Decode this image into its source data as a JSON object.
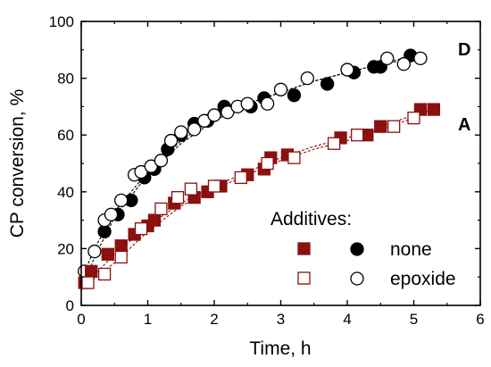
{
  "chart_data": {
    "type": "scatter",
    "xlabel": "Time, h",
    "ylabel": "CP conversion, %",
    "xlim": [
      0,
      6
    ],
    "ylim": [
      0,
      100
    ],
    "xticks": [
      0,
      1,
      2,
      3,
      4,
      5,
      6
    ],
    "yticks": [
      0,
      20,
      40,
      60,
      80,
      100
    ],
    "grid": false,
    "legend": {
      "title": "Additives:",
      "entries": [
        {
          "label": "none",
          "markers": [
            "filled-square",
            "filled-circle"
          ]
        },
        {
          "label": "epoxide",
          "markers": [
            "open-square",
            "open-circle"
          ]
        }
      ],
      "placement": "bottom-right"
    },
    "curve_labels": [
      "D",
      "A"
    ],
    "colors": {
      "A": "#8b1010",
      "D": "#000000"
    },
    "series": [
      {
        "curve": "D",
        "additive": "none",
        "marker": "filled-circle",
        "x": [
          0.1,
          0.35,
          0.55,
          0.75,
          0.95,
          1.1,
          1.3,
          1.5,
          1.7,
          1.9,
          2.15,
          2.55,
          2.75,
          3.2,
          3.7,
          4.1,
          4.4,
          4.5,
          4.95
        ],
        "y": [
          10,
          26,
          32,
          37,
          45,
          48,
          55,
          60,
          64,
          65,
          70,
          70,
          73,
          74,
          78,
          82,
          84,
          84,
          88
        ]
      },
      {
        "curve": "D",
        "additive": "epoxide",
        "marker": "open-circle",
        "x": [
          0.05,
          0.2,
          0.35,
          0.45,
          0.6,
          0.8,
          0.9,
          1.05,
          1.2,
          1.35,
          1.5,
          1.7,
          1.85,
          2.0,
          2.2,
          2.35,
          2.5,
          2.8,
          3.0,
          3.4,
          4.0,
          4.6,
          4.85,
          5.1
        ],
        "y": [
          12,
          19,
          30,
          32,
          37,
          46,
          47,
          49,
          51,
          58,
          61,
          62,
          65,
          67,
          68,
          70,
          71,
          71,
          76,
          80,
          83,
          87,
          85,
          87
        ]
      },
      {
        "curve": "A",
        "additive": "none",
        "marker": "filled-square",
        "x": [
          0.05,
          0.15,
          0.4,
          0.6,
          0.8,
          1.0,
          1.1,
          1.4,
          1.7,
          1.9,
          2.1,
          2.5,
          2.75,
          2.85,
          3.1,
          3.9,
          4.3,
          4.5,
          5.1,
          5.3
        ],
        "y": [
          8,
          12,
          18,
          21,
          25,
          28,
          30,
          36,
          38,
          40,
          42,
          46,
          48,
          52,
          53,
          59,
          60,
          63,
          69,
          69
        ]
      },
      {
        "curve": "A",
        "additive": "epoxide",
        "marker": "open-square",
        "x": [
          0.1,
          0.35,
          0.6,
          0.9,
          1.2,
          1.45,
          1.65,
          2.0,
          2.4,
          2.8,
          3.2,
          3.8,
          4.15,
          4.7,
          5.0
        ],
        "y": [
          8,
          11,
          17,
          27,
          34,
          38,
          41,
          42,
          45,
          50,
          52,
          57,
          60,
          63,
          66
        ]
      }
    ],
    "fit_curves": [
      {
        "curve": "D",
        "additive": "none",
        "x": [
          0,
          0.2,
          0.5,
          1,
          1.5,
          2,
          2.5,
          3,
          3.5,
          4,
          4.5,
          5
        ],
        "y": [
          5,
          17,
          31,
          46,
          57,
          65,
          71,
          75,
          79,
          82,
          85,
          88
        ]
      },
      {
        "curve": "D",
        "additive": "epoxide",
        "x": [
          0,
          0.2,
          0.5,
          1,
          1.5,
          2,
          2.5,
          3,
          3.5,
          4,
          4.5,
          5.1
        ],
        "y": [
          9,
          20,
          33,
          47,
          58,
          66,
          71,
          75,
          79,
          82,
          85,
          87
        ]
      },
      {
        "curve": "A",
        "additive": "none",
        "x": [
          0,
          0.5,
          1,
          1.5,
          2,
          2.5,
          3,
          3.5,
          4,
          4.5,
          5,
          5.3
        ],
        "y": [
          6,
          18,
          28,
          36,
          42,
          47,
          52,
          56,
          59,
          63,
          67,
          69
        ]
      },
      {
        "curve": "A",
        "additive": "epoxide",
        "x": [
          0,
          0.5,
          1,
          1.5,
          2,
          2.5,
          3,
          3.5,
          4,
          4.5,
          5
        ],
        "y": [
          6,
          15,
          26,
          35,
          41,
          46,
          51,
          55,
          58,
          62,
          66
        ]
      }
    ]
  }
}
